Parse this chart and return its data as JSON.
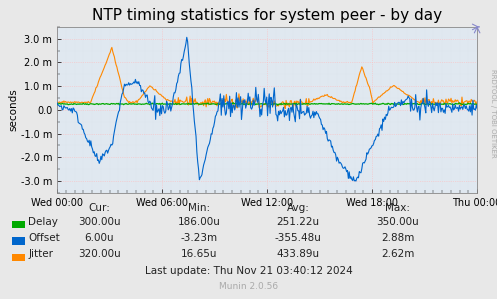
{
  "title": "NTP timing statistics for system peer - by day",
  "ylabel": "seconds",
  "background_color": "#e8e8e8",
  "plot_bg_color": "#e0e8f0",
  "grid_color_major": "#ffbbbb",
  "grid_color_minor": "#ddddee",
  "ylim": [
    -0.0035,
    0.0035
  ],
  "yticks": [
    -0.003,
    -0.002,
    -0.001,
    0,
    0.001,
    0.002,
    0.003
  ],
  "ytick_labels": [
    "-3.0 m",
    "-2.0 m",
    "-1.0 m",
    "0.0",
    "1.0 m",
    "2.0 m",
    "3.0 m"
  ],
  "xtick_labels": [
    "Wed 00:00",
    "Wed 06:00",
    "Wed 12:00",
    "Wed 18:00",
    "Thu 00:00"
  ],
  "legend_items": [
    {
      "label": "Delay",
      "color": "#00aa00"
    },
    {
      "label": "Offset",
      "color": "#0066cc"
    },
    {
      "label": "Jitter",
      "color": "#ff8800"
    }
  ],
  "table_headers": [
    "Cur:",
    "Min:",
    "Avg:",
    "Max:"
  ],
  "table_rows": [
    [
      "Delay",
      "300.00u",
      "186.00u",
      "251.22u",
      "350.00u"
    ],
    [
      "Offset",
      "6.00u",
      "-3.23m",
      "-355.48u",
      "2.88m"
    ],
    [
      "Jitter",
      "320.00u",
      "16.65u",
      "433.89u",
      "2.62m"
    ]
  ],
  "last_update": "Last update: Thu Nov 21 03:40:12 2024",
  "munin_version": "Munin 2.0.56",
  "rrdtool_label": "RRDTOOL / TOBI OETIKER",
  "title_fontsize": 11,
  "axis_fontsize": 7.5,
  "tick_fontsize": 7,
  "table_fontsize": 7.5
}
